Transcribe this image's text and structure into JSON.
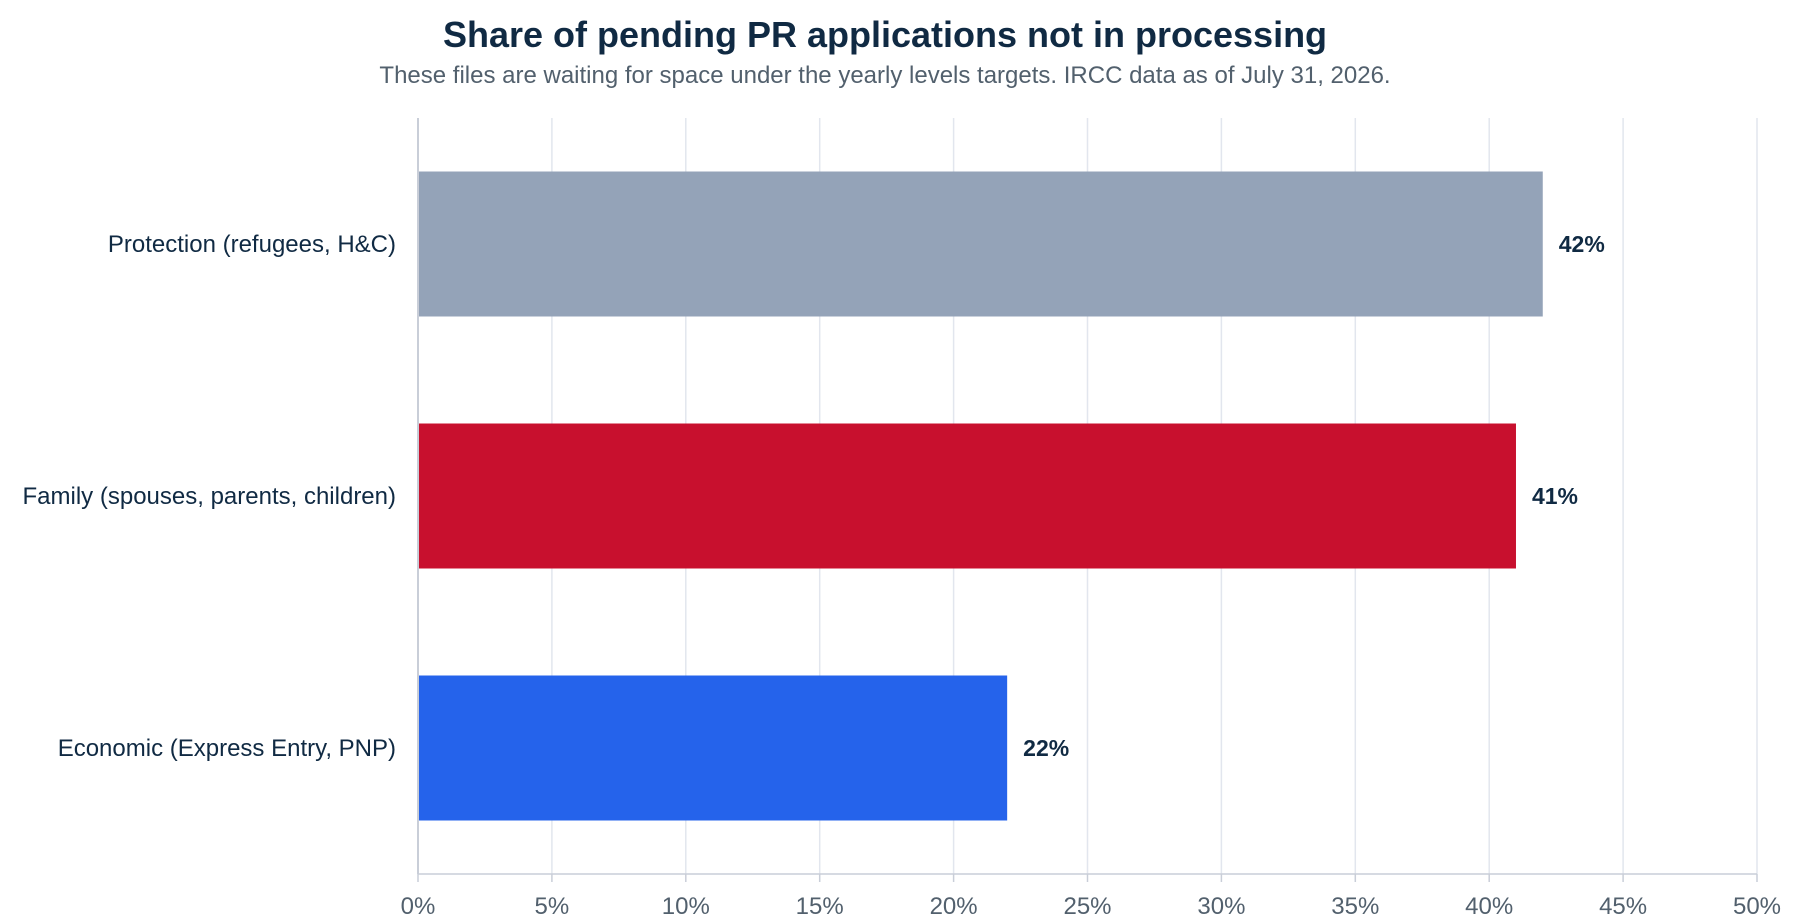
{
  "chart_data": {
    "type": "bar",
    "orientation": "horizontal",
    "title": "Share of pending PR applications not in processing",
    "subtitle": "These files are waiting for space under the yearly levels targets. IRCC data as of July 31, 2026.",
    "xlabel": "",
    "ylabel": "",
    "categories": [
      "Protection (refugees, H&C)",
      "Family (spouses, parents, children)",
      "Economic (Express Entry, PNP)"
    ],
    "values": [
      42,
      41,
      22
    ],
    "data_labels": [
      "42%",
      "41%",
      "22%"
    ],
    "bar_colors": [
      "#94a3b8",
      "#c8102e",
      "#2563eb"
    ],
    "xlim": [
      0,
      50
    ],
    "x_ticks": [
      0,
      5,
      10,
      15,
      20,
      25,
      30,
      35,
      40,
      45,
      50
    ],
    "x_tick_labels": [
      "0%",
      "5%",
      "10%",
      "15%",
      "20%",
      "25%",
      "30%",
      "35%",
      "40%",
      "45%",
      "50%"
    ],
    "grid": "vertical",
    "legend": "none",
    "colors": {
      "title": "#102a43",
      "subtitle": "#52606d",
      "category_label": "#102a43",
      "data_label": "#102a43",
      "tick_label": "#52606d",
      "grid": "#e2e6ee",
      "axis": "#c9ced8"
    }
  }
}
